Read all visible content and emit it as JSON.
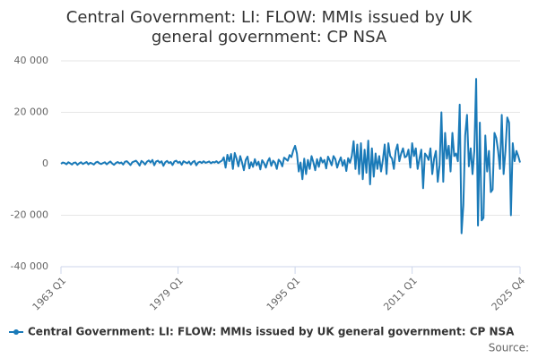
{
  "chart_data": {
    "type": "line",
    "title": "Central Government: LI: FLOW: MMIs issued by UK general government: CP NSA",
    "source_label": "Source:",
    "categories": [
      "1963 Q1",
      null,
      null,
      null,
      null,
      null,
      null,
      null,
      null,
      null,
      null,
      null,
      null,
      null,
      null,
      null,
      null,
      null,
      null,
      null,
      null,
      null,
      null,
      null,
      null,
      null,
      null,
      null,
      null,
      null,
      null,
      null,
      null,
      null,
      null,
      null,
      null,
      null,
      null,
      null,
      null,
      null,
      null,
      null,
      null,
      null,
      null,
      null,
      null,
      null,
      null,
      null,
      null,
      null,
      null,
      null,
      null,
      null,
      null,
      null,
      null,
      null,
      null,
      null,
      "1979 Q1",
      null,
      null,
      null,
      null,
      null,
      null,
      null,
      null,
      null,
      null,
      null,
      null,
      null,
      null,
      null,
      null,
      null,
      null,
      null,
      null,
      null,
      null,
      null,
      null,
      null,
      null,
      null,
      null,
      null,
      null,
      null,
      null,
      null,
      null,
      null,
      null,
      null,
      null,
      null,
      null,
      null,
      null,
      null,
      null,
      null,
      null,
      null,
      null,
      null,
      null,
      null,
      null,
      null,
      null,
      null,
      null,
      null,
      null,
      null,
      null,
      null,
      null,
      null,
      "1995 Q1",
      null,
      null,
      null,
      null,
      null,
      null,
      null,
      null,
      null,
      null,
      null,
      null,
      null,
      null,
      null,
      null,
      null,
      null,
      null,
      null,
      null,
      null,
      null,
      null,
      null,
      null,
      null,
      null,
      null,
      null,
      null,
      null,
      null,
      null,
      null,
      null,
      null,
      null,
      null,
      null,
      null,
      null,
      null,
      null,
      null,
      null,
      null,
      null,
      null,
      null,
      null,
      null,
      null,
      null,
      null,
      null,
      null,
      null,
      null,
      null,
      null,
      null,
      null,
      "2011 Q1",
      null,
      null,
      null,
      null,
      null,
      null,
      null,
      null,
      null,
      null,
      null,
      null,
      null,
      null,
      null,
      null,
      null,
      null,
      null,
      null,
      null,
      null,
      null,
      null,
      null,
      null,
      null,
      null,
      null,
      null,
      null,
      null,
      null,
      null,
      null,
      null,
      null,
      null,
      null,
      null,
      null,
      null,
      null,
      null,
      null,
      null,
      null,
      null,
      null,
      null,
      null,
      null,
      null,
      null,
      null,
      null,
      null,
      null,
      "2025 Q4"
    ],
    "series": [
      {
        "name": "Central Government: LI: FLOW: MMIs issued by UK general government: CP NSA",
        "color": "#1a7ab8",
        "values": [
          0,
          500,
          300,
          -200,
          600,
          200,
          -300,
          400,
          500,
          -400,
          200,
          600,
          -100,
          300,
          700,
          -200,
          400,
          100,
          -300,
          500,
          800,
          200,
          -100,
          300,
          600,
          -200,
          400,
          900,
          100,
          -400,
          300,
          700,
          200,
          500,
          -300,
          800,
          1000,
          300,
          -500,
          600,
          900,
          1200,
          400,
          -700,
          1100,
          600,
          -300,
          800,
          1300,
          500,
          1500,
          -600,
          900,
          1200,
          400,
          1000,
          -800,
          600,
          1100,
          300,
          700,
          -500,
          900,
          1200,
          400,
          800,
          -400,
          1000,
          600,
          200,
          900,
          -300,
          700,
          1100,
          -600,
          500,
          800,
          300,
          1000,
          400,
          600,
          900,
          200,
          700,
          500,
          1000,
          300,
          800,
          1200,
          2500,
          -1500,
          3500,
          1000,
          3800,
          -2000,
          4200,
          2000,
          -1000,
          3000,
          500,
          -2500,
          1500,
          2800,
          -1800,
          600,
          -1200,
          1800,
          -600,
          800,
          -2200,
          1400,
          300,
          -1500,
          900,
          2200,
          -800,
          1200,
          400,
          -2000,
          1600,
          800,
          -1000,
          2400,
          1800,
          1200,
          3400,
          2600,
          5200,
          7000,
          4000,
          -3000,
          500,
          -6000,
          2000,
          -4000,
          1500,
          -2000,
          3000,
          600,
          -2500,
          1800,
          -1200,
          2400,
          500,
          1500,
          -1800,
          2800,
          1200,
          -600,
          3000,
          1800,
          -1500,
          800,
          2500,
          -800,
          1400,
          -2800,
          2200,
          400,
          3000,
          8800,
          -2000,
          7500,
          -4000,
          8000,
          -6000,
          5500,
          -3500,
          9000,
          -8000,
          6000,
          -5000,
          4000,
          -2000,
          3000,
          -3000,
          1500,
          7500,
          -4000,
          8000,
          3000,
          2000,
          -2000,
          5000,
          7500,
          1000,
          4000,
          6000,
          2500,
          3000,
          5500,
          -1500,
          8000,
          3000,
          6000,
          -2000,
          2000,
          5500,
          -9500,
          4000,
          3000,
          1500,
          6000,
          -4000,
          2000,
          5000,
          -7000,
          -500,
          20000,
          -7000,
          12000,
          2000,
          7000,
          -3000,
          12000,
          3000,
          4000,
          1000,
          23000,
          -27000,
          -16000,
          11000,
          19000,
          -1000,
          6000,
          -4000,
          5000,
          33000,
          -24000,
          16000,
          -22000,
          -21000,
          11000,
          -3000,
          5000,
          -11000,
          -10000,
          12000,
          10000,
          5000,
          -2000,
          19000,
          -4000,
          5000,
          18000,
          16000,
          -20000,
          8000,
          1000,
          5000,
          3000,
          500
        ]
      }
    ],
    "ylim": [
      -40000,
      40000
    ],
    "yticks": [
      {
        "value": -40000,
        "label": "-40 000"
      },
      {
        "value": -20000,
        "label": "-20 000"
      },
      0,
      {
        "value": 20000,
        "label": "20 000"
      },
      {
        "value": 40000,
        "label": "40 000"
      }
    ],
    "grid": true
  }
}
